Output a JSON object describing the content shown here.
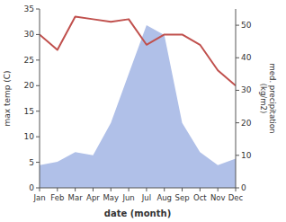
{
  "chart_data": {
    "type": "line",
    "xlabel": "date (month)",
    "ylabel": "max temp (C)",
    "y2label": "med. precipitation\n(kg/m2)",
    "categories": [
      "Jan",
      "Feb",
      "Mar",
      "Apr",
      "May",
      "Jun",
      "Jul",
      "Aug",
      "Sep",
      "Oct",
      "Nov",
      "Dec"
    ],
    "series": [
      {
        "type": "line",
        "color": "#c0504d",
        "values": [
          30,
          27,
          33.5,
          33,
          32.5,
          33,
          28,
          30,
          30,
          28,
          23,
          20
        ]
      },
      {
        "type": "area",
        "axis": "y2",
        "color": "#b0c0e8",
        "values": [
          7,
          8,
          11,
          10,
          20,
          35,
          50,
          47,
          20,
          11,
          7,
          9
        ]
      }
    ],
    "ylim": [
      0,
      35
    ],
    "yticks": [
      0,
      5,
      10,
      15,
      20,
      25,
      30,
      35
    ],
    "y2lim": [
      0,
      55
    ],
    "y2ticks": [
      0,
      10,
      20,
      30,
      40,
      50
    ],
    "grid": false
  }
}
